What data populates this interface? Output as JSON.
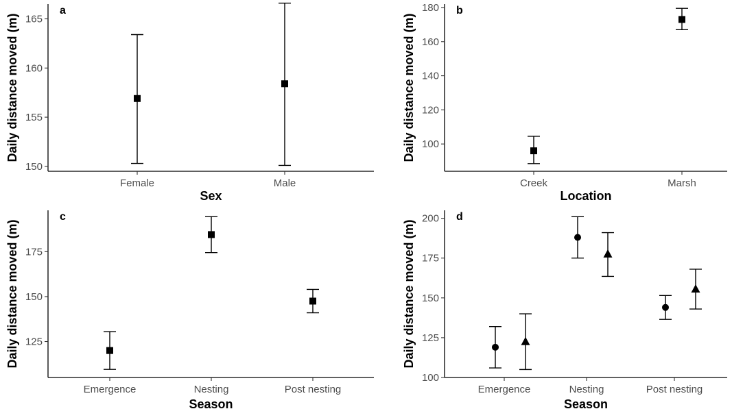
{
  "chart_data": [
    {
      "panel": "a",
      "type": "scatter",
      "xlabel": "Sex",
      "ylabel": "Daily distance moved (m)",
      "categories": [
        "Female",
        "Male"
      ],
      "ylim": [
        149.5,
        166.5
      ],
      "yticks": [
        150,
        155,
        160,
        165
      ],
      "series": [
        {
          "marker": "square",
          "values": [
            156.9,
            158.4
          ],
          "lower": [
            150.3,
            150.1
          ],
          "upper": [
            163.4,
            166.6
          ]
        }
      ]
    },
    {
      "panel": "b",
      "type": "scatter",
      "xlabel": "Location",
      "ylabel": "Daily distance moved (m)",
      "categories": [
        "Creek",
        "Marsh"
      ],
      "ylim": [
        84,
        182
      ],
      "yticks": [
        100,
        120,
        140,
        160,
        180
      ],
      "series": [
        {
          "marker": "square",
          "values": [
            96,
            173
          ],
          "lower": [
            88.5,
            167
          ],
          "upper": [
            104.5,
            179.5
          ]
        }
      ]
    },
    {
      "panel": "c",
      "type": "scatter",
      "xlabel": "Season",
      "ylabel": "Daily distance moved (m)",
      "categories": [
        "Emergence",
        "Nesting",
        "Post nesting"
      ],
      "ylim": [
        105,
        198
      ],
      "yticks": [
        125,
        150,
        175
      ],
      "series": [
        {
          "marker": "square",
          "values": [
            120,
            184.5
          ],
          "lower": [
            109.5,
            174.5
          ],
          "upper": [
            130.5,
            194.5
          ],
          "note": ""
        }
      ],
      "series_full": [
        {
          "marker": "square",
          "values": [
            120,
            184.5,
            147.5
          ],
          "lower": [
            109.5,
            174.5,
            141
          ],
          "upper": [
            130.5,
            194.5,
            154
          ]
        }
      ]
    },
    {
      "panel": "d",
      "type": "scatter",
      "xlabel": "Season",
      "ylabel": "Daily distance moved (m)",
      "categories": [
        "Emergence",
        "Nesting",
        "Post nesting"
      ],
      "ylim": [
        100,
        205
      ],
      "yticks": [
        100,
        125,
        150,
        175,
        200
      ],
      "series": [
        {
          "marker": "circle",
          "values": [
            119,
            188,
            144
          ],
          "lower": [
            106,
            175,
            136.5
          ],
          "upper": [
            132,
            201,
            151.5
          ]
        },
        {
          "marker": "triangle",
          "values": [
            122.5,
            177.5,
            155.5
          ],
          "lower": [
            105,
            163.5,
            143
          ],
          "upper": [
            140,
            191,
            168
          ]
        }
      ]
    }
  ]
}
